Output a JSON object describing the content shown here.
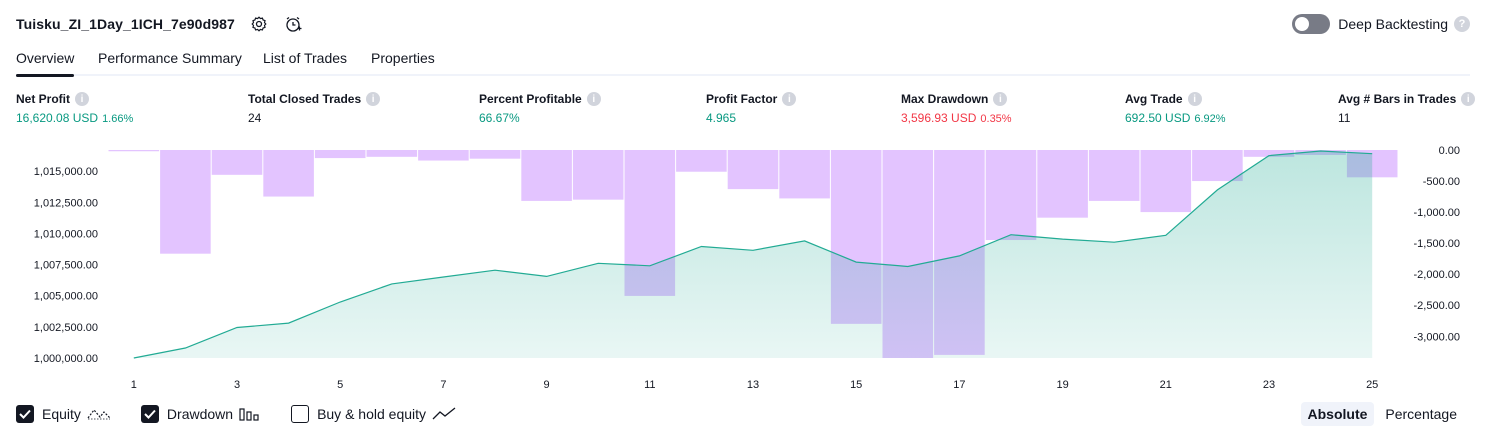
{
  "header": {
    "strategy_name": "Tuisku_ZI_1Day_1ICH_7e90d987",
    "settings_icon": "gear-icon",
    "alert_icon": "alert-clock-icon"
  },
  "deep_backtesting": {
    "label": "Deep Backtesting",
    "enabled": false,
    "help": "?"
  },
  "tabs": [
    {
      "label": "Overview",
      "active": true
    },
    {
      "label": "Performance Summary",
      "active": false
    },
    {
      "label": "List of Trades",
      "active": false
    },
    {
      "label": "Properties",
      "active": false
    }
  ],
  "metrics": [
    {
      "label": "Net Profit",
      "value": "16,620.08 USD",
      "pct": "1.66%",
      "color": "green",
      "info": "i"
    },
    {
      "label": "Total Closed Trades",
      "value": "24",
      "pct": "",
      "color": "dark",
      "info": "i"
    },
    {
      "label": "Percent Profitable",
      "value": "66.67%",
      "pct": "",
      "color": "green",
      "info": "i"
    },
    {
      "label": "Profit Factor",
      "value": "4.965",
      "pct": "",
      "color": "green",
      "info": "i"
    },
    {
      "label": "Max Drawdown",
      "value": "3,596.93 USD",
      "pct": "0.35%",
      "color": "red",
      "info": "i"
    },
    {
      "label": "Avg Trade",
      "value": "692.50 USD",
      "pct": "6.92%",
      "color": "green",
      "info": "i"
    },
    {
      "label": "Avg # Bars in Trades",
      "value": "11",
      "pct": "",
      "color": "dark",
      "info": "i"
    }
  ],
  "chart_data": {
    "type": "line",
    "title": "",
    "x": [
      1,
      2,
      3,
      4,
      5,
      6,
      7,
      8,
      9,
      10,
      11,
      12,
      13,
      14,
      15,
      16,
      17,
      18,
      19,
      20,
      21,
      22,
      23,
      24,
      25
    ],
    "xticks": [
      "1",
      "3",
      "5",
      "7",
      "9",
      "11",
      "13",
      "15",
      "17",
      "19",
      "21",
      "23",
      "25"
    ],
    "y_left_ticks": [
      "1,015,000.00",
      "1,012,500.00",
      "1,010,000.00",
      "1,007,500.00",
      "1,005,000.00",
      "1,002,500.00",
      "1,000,000.00"
    ],
    "y_left_tick_values": [
      1015000,
      1012500,
      1010000,
      1007500,
      1005000,
      1002500,
      1000000
    ],
    "y_right_ticks": [
      "0.00",
      "-500.00",
      "-1,000.00",
      "-1,500.00",
      "-2,000.00",
      "-2,500.00",
      "-3,000.00"
    ],
    "y_right_tick_values": [
      0,
      -500,
      -1000,
      -1500,
      -2000,
      -2500,
      -3000
    ],
    "ylim_left": [
      1000000,
      1016700
    ],
    "ylim_right": [
      -3350,
      0
    ],
    "series": [
      {
        "name": "Equity",
        "axis": "left",
        "kind": "area",
        "values": [
          1000000,
          1000800,
          1002450,
          1002800,
          1004500,
          1005950,
          1006500,
          1007050,
          1006550,
          1007600,
          1007400,
          1008950,
          1008650,
          1009400,
          1007700,
          1007350,
          1008200,
          1009900,
          1009550,
          1009300,
          1009850,
          1013500,
          1016250,
          1016620,
          1016400
        ]
      },
      {
        "name": "Drawdown",
        "axis": "right",
        "kind": "bar",
        "values": [
          -20,
          -1670,
          -400,
          -750,
          -130,
          -110,
          -170,
          -140,
          -820,
          -800,
          -2350,
          -350,
          -630,
          -780,
          -2800,
          -3350,
          -3300,
          -1450,
          -1090,
          -820,
          -1000,
          -500,
          -110,
          -80,
          -440
        ]
      }
    ],
    "colors": {
      "equity_line": "#22ab94",
      "equity_fill": "#22ab94",
      "drawdown_bar": "#d4a5ff"
    }
  },
  "legend": [
    {
      "label": "Equity",
      "checked": true,
      "icon": "equity-line-icon"
    },
    {
      "label": "Drawdown",
      "checked": true,
      "icon": "drawdown-bars-icon"
    },
    {
      "label": "Buy & hold equity",
      "checked": false,
      "icon": "buy-hold-line-icon"
    }
  ],
  "mode": {
    "absolute_label": "Absolute",
    "percentage_label": "Percentage",
    "active": "Absolute"
  }
}
